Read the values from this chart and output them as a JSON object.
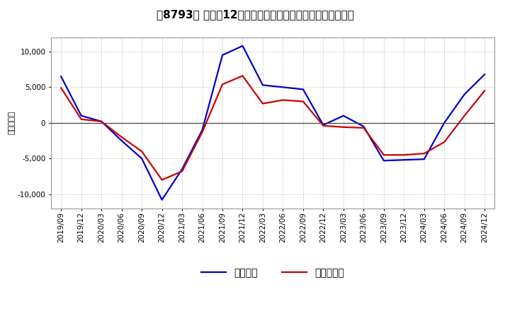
{
  "title": "［8793］ 利益の12か月移動合計の対前年同期増減額の推移",
  "ylabel": "（百万円）",
  "xlabels": [
    "2019/09",
    "2019/12",
    "2020/03",
    "2020/06",
    "2020/09",
    "2020/12",
    "2021/03",
    "2021/06",
    "2021/09",
    "2021/12",
    "2022/03",
    "2022/06",
    "2022/09",
    "2022/12",
    "2023/03",
    "2023/06",
    "2023/09",
    "2023/12",
    "2024/03",
    "2024/06",
    "2024/09",
    "2024/12"
  ],
  "blue_values": [
    6500,
    1000,
    200,
    -2500,
    -5000,
    -10800,
    -6500,
    -1000,
    9500,
    10800,
    5300,
    5000,
    4700,
    -300,
    1000,
    -500,
    -5300,
    -5200,
    -5100,
    0,
    4000,
    6800
  ],
  "red_values": [
    4900,
    500,
    200,
    -2000,
    -4000,
    -8000,
    -6800,
    -1300,
    5400,
    6600,
    2700,
    3200,
    3000,
    -400,
    -600,
    -700,
    -4500,
    -4500,
    -4300,
    -2700,
    1000,
    4500
  ],
  "blue_label": "経常利益",
  "red_label": "当期純利益",
  "ylim": [
    -12000,
    12000
  ],
  "yticks": [
    -10000,
    -5000,
    0,
    5000,
    10000
  ],
  "background_color": "#ffffff",
  "grid_color": "#aaaaaa",
  "blue_color": "#0000cc",
  "red_color": "#cc0000",
  "title_fontsize": 11,
  "tick_fontsize": 7.5,
  "legend_fontsize": 10,
  "ylabel_fontsize": 8
}
